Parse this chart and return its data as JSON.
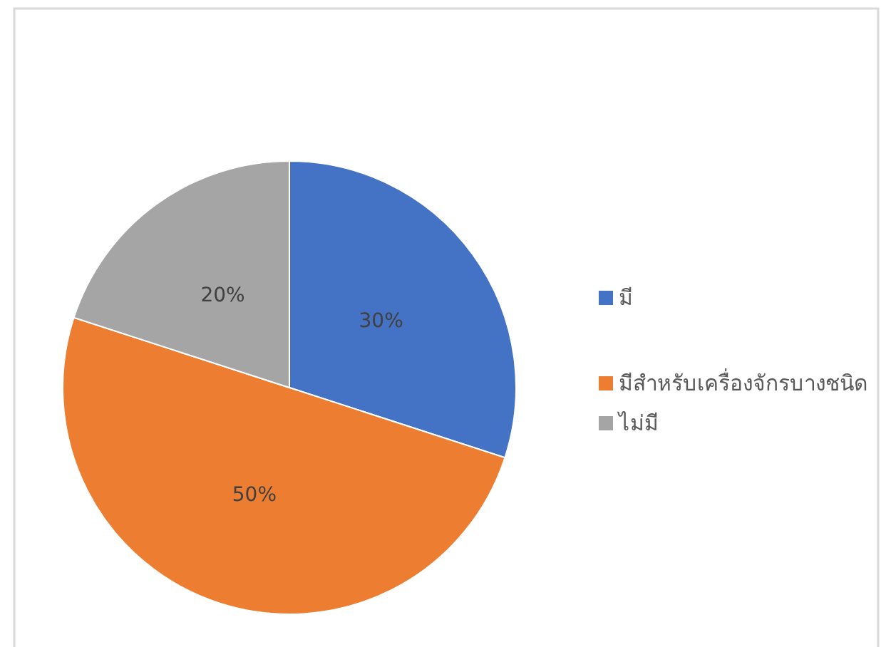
{
  "chart_data": {
    "type": "pie",
    "categories": [
      "มี",
      "มีสำหรับเครื่องจักรบางชนิด",
      "ไม่มี"
    ],
    "values": [
      30,
      50,
      20
    ],
    "colors": [
      "#4472c4",
      "#ed7d31",
      "#a5a5a5"
    ],
    "value_labels": [
      "30%",
      "50%",
      "20%"
    ],
    "legend": "right"
  }
}
